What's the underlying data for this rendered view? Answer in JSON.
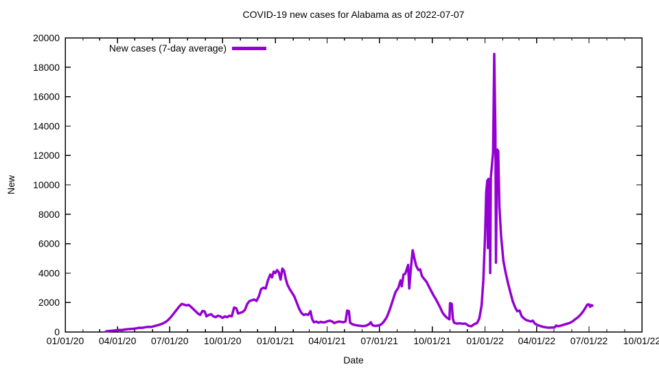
{
  "chart_data": {
    "type": "line",
    "title": "COVID-19 new cases for Alabama as of 2022-07-07",
    "xlabel": "Date",
    "ylabel": "New",
    "x_range": [
      "2020-01-01",
      "2022-10-01"
    ],
    "ylim": [
      0,
      20000
    ],
    "y_ticks": [
      0,
      2000,
      4000,
      6000,
      8000,
      10000,
      12000,
      14000,
      16000,
      18000,
      20000
    ],
    "x_minor_tick_interval": "monthly",
    "grid": false,
    "border": true,
    "background_color": "#ffffff",
    "axis_color": "#000000",
    "legend_position": "top-left",
    "x_major_ticks": [
      {
        "date": "2020-01-01",
        "label": "01/01/20"
      },
      {
        "date": "2020-04-01",
        "label": "04/01/20"
      },
      {
        "date": "2020-07-01",
        "label": "07/01/20"
      },
      {
        "date": "2020-10-01",
        "label": "10/01/20"
      },
      {
        "date": "2021-01-01",
        "label": "01/01/21"
      },
      {
        "date": "2021-04-01",
        "label": "04/01/21"
      },
      {
        "date": "2021-07-01",
        "label": "07/01/21"
      },
      {
        "date": "2021-10-01",
        "label": "10/01/21"
      },
      {
        "date": "2022-01-01",
        "label": "01/01/22"
      },
      {
        "date": "2022-04-01",
        "label": "04/01/22"
      },
      {
        "date": "2022-07-01",
        "label": "07/01/22"
      },
      {
        "date": "2022-10-01",
        "label": "10/01/22"
      }
    ],
    "series": [
      {
        "name": "New cases (7-day average)",
        "color": "#9400d3",
        "points": [
          [
            "2020-03-12",
            30
          ],
          [
            "2020-03-16",
            50
          ],
          [
            "2020-03-20",
            70
          ],
          [
            "2020-03-25",
            90
          ],
          [
            "2020-03-30",
            110
          ],
          [
            "2020-04-04",
            130
          ],
          [
            "2020-04-09",
            120
          ],
          [
            "2020-04-14",
            160
          ],
          [
            "2020-04-19",
            180
          ],
          [
            "2020-04-24",
            200
          ],
          [
            "2020-04-29",
            210
          ],
          [
            "2020-05-04",
            240
          ],
          [
            "2020-05-09",
            280
          ],
          [
            "2020-05-14",
            270
          ],
          [
            "2020-05-19",
            310
          ],
          [
            "2020-05-24",
            340
          ],
          [
            "2020-05-29",
            330
          ],
          [
            "2020-06-03",
            380
          ],
          [
            "2020-06-08",
            430
          ],
          [
            "2020-06-13",
            480
          ],
          [
            "2020-06-18",
            550
          ],
          [
            "2020-06-23",
            650
          ],
          [
            "2020-06-28",
            800
          ],
          [
            "2020-07-03",
            1000
          ],
          [
            "2020-07-08",
            1250
          ],
          [
            "2020-07-13",
            1500
          ],
          [
            "2020-07-18",
            1750
          ],
          [
            "2020-07-22",
            1900
          ],
          [
            "2020-07-26",
            1850
          ],
          [
            "2020-07-30",
            1800
          ],
          [
            "2020-08-03",
            1830
          ],
          [
            "2020-08-07",
            1700
          ],
          [
            "2020-08-11",
            1550
          ],
          [
            "2020-08-15",
            1400
          ],
          [
            "2020-08-19",
            1250
          ],
          [
            "2020-08-23",
            1150
          ],
          [
            "2020-08-27",
            1420
          ],
          [
            "2020-08-31",
            1380
          ],
          [
            "2020-09-03",
            1050
          ],
          [
            "2020-09-07",
            1150
          ],
          [
            "2020-09-11",
            1200
          ],
          [
            "2020-09-15",
            1050
          ],
          [
            "2020-09-19",
            1000
          ],
          [
            "2020-09-23",
            1100
          ],
          [
            "2020-09-27",
            1050
          ],
          [
            "2020-10-01",
            950
          ],
          [
            "2020-10-05",
            1050
          ],
          [
            "2020-10-09",
            1000
          ],
          [
            "2020-10-13",
            1100
          ],
          [
            "2020-10-17",
            1050
          ],
          [
            "2020-10-21",
            1650
          ],
          [
            "2020-10-25",
            1600
          ],
          [
            "2020-10-28",
            1250
          ],
          [
            "2020-11-01",
            1300
          ],
          [
            "2020-11-05",
            1350
          ],
          [
            "2020-11-09",
            1500
          ],
          [
            "2020-11-13",
            1900
          ],
          [
            "2020-11-17",
            2100
          ],
          [
            "2020-11-21",
            2150
          ],
          [
            "2020-11-25",
            2200
          ],
          [
            "2020-11-29",
            2100
          ],
          [
            "2020-12-03",
            2400
          ],
          [
            "2020-12-07",
            2900
          ],
          [
            "2020-12-11",
            3000
          ],
          [
            "2020-12-15",
            2950
          ],
          [
            "2020-12-19",
            3500
          ],
          [
            "2020-12-23",
            3900
          ],
          [
            "2020-12-26",
            3700
          ],
          [
            "2020-12-29",
            4100
          ],
          [
            "2021-01-01",
            4000
          ],
          [
            "2021-01-04",
            4200
          ],
          [
            "2021-01-07",
            4050
          ],
          [
            "2021-01-10",
            3550
          ],
          [
            "2021-01-13",
            4300
          ],
          [
            "2021-01-16",
            4150
          ],
          [
            "2021-01-19",
            3600
          ],
          [
            "2021-01-22",
            3200
          ],
          [
            "2021-01-26",
            2900
          ],
          [
            "2021-01-30",
            2650
          ],
          [
            "2021-02-03",
            2400
          ],
          [
            "2021-02-07",
            2000
          ],
          [
            "2021-02-11",
            1600
          ],
          [
            "2021-02-15",
            1300
          ],
          [
            "2021-02-19",
            1150
          ],
          [
            "2021-02-23",
            1200
          ],
          [
            "2021-02-27",
            1150
          ],
          [
            "2021-03-03",
            1400
          ],
          [
            "2021-03-06",
            850
          ],
          [
            "2021-03-09",
            650
          ],
          [
            "2021-03-13",
            700
          ],
          [
            "2021-03-17",
            620
          ],
          [
            "2021-03-21",
            680
          ],
          [
            "2021-03-25",
            640
          ],
          [
            "2021-03-29",
            660
          ],
          [
            "2021-04-02",
            730
          ],
          [
            "2021-04-06",
            760
          ],
          [
            "2021-04-10",
            700
          ],
          [
            "2021-04-13",
            600
          ],
          [
            "2021-04-17",
            650
          ],
          [
            "2021-04-21",
            700
          ],
          [
            "2021-04-25",
            680
          ],
          [
            "2021-04-29",
            650
          ],
          [
            "2021-05-03",
            700
          ],
          [
            "2021-05-06",
            1450
          ],
          [
            "2021-05-09",
            1400
          ],
          [
            "2021-05-11",
            620
          ],
          [
            "2021-05-15",
            520
          ],
          [
            "2021-05-19",
            470
          ],
          [
            "2021-05-24",
            430
          ],
          [
            "2021-05-29",
            410
          ],
          [
            "2021-06-03",
            390
          ],
          [
            "2021-06-08",
            420
          ],
          [
            "2021-06-13",
            520
          ],
          [
            "2021-06-16",
            650
          ],
          [
            "2021-06-19",
            450
          ],
          [
            "2021-06-24",
            400
          ],
          [
            "2021-06-29",
            430
          ],
          [
            "2021-07-04",
            500
          ],
          [
            "2021-07-09",
            700
          ],
          [
            "2021-07-14",
            1000
          ],
          [
            "2021-07-19",
            1500
          ],
          [
            "2021-07-24",
            2100
          ],
          [
            "2021-07-29",
            2700
          ],
          [
            "2021-08-03",
            3000
          ],
          [
            "2021-08-07",
            3500
          ],
          [
            "2021-08-09",
            3100
          ],
          [
            "2021-08-12",
            3900
          ],
          [
            "2021-08-15",
            3950
          ],
          [
            "2021-08-18",
            4300
          ],
          [
            "2021-08-20",
            4550
          ],
          [
            "2021-08-22",
            2950
          ],
          [
            "2021-08-25",
            4400
          ],
          [
            "2021-08-28",
            5550
          ],
          [
            "2021-08-31",
            5000
          ],
          [
            "2021-09-03",
            4500
          ],
          [
            "2021-09-07",
            4200
          ],
          [
            "2021-09-10",
            4250
          ],
          [
            "2021-09-13",
            3800
          ],
          [
            "2021-09-17",
            3600
          ],
          [
            "2021-09-21",
            3400
          ],
          [
            "2021-09-25",
            3100
          ],
          [
            "2021-09-29",
            2800
          ],
          [
            "2021-10-03",
            2500
          ],
          [
            "2021-10-07",
            2250
          ],
          [
            "2021-10-11",
            1950
          ],
          [
            "2021-10-15",
            1650
          ],
          [
            "2021-10-19",
            1300
          ],
          [
            "2021-10-23",
            1100
          ],
          [
            "2021-10-27",
            950
          ],
          [
            "2021-10-31",
            850
          ],
          [
            "2021-11-01",
            1950
          ],
          [
            "2021-11-04",
            1900
          ],
          [
            "2021-11-06",
            900
          ],
          [
            "2021-11-08",
            620
          ],
          [
            "2021-11-13",
            560
          ],
          [
            "2021-11-18",
            580
          ],
          [
            "2021-11-23",
            550
          ],
          [
            "2021-11-28",
            560
          ],
          [
            "2021-12-03",
            420
          ],
          [
            "2021-12-08",
            380
          ],
          [
            "2021-12-13",
            520
          ],
          [
            "2021-12-18",
            600
          ],
          [
            "2021-12-22",
            900
          ],
          [
            "2021-12-26",
            1800
          ],
          [
            "2021-12-29",
            3500
          ],
          [
            "2022-01-01",
            6500
          ],
          [
            "2022-01-03",
            9500
          ],
          [
            "2022-01-05",
            10300
          ],
          [
            "2022-01-06",
            5700
          ],
          [
            "2022-01-07",
            10400
          ],
          [
            "2022-01-09",
            10300
          ],
          [
            "2022-01-10",
            4000
          ],
          [
            "2022-01-11",
            10500
          ],
          [
            "2022-01-13",
            11300
          ],
          [
            "2022-01-15",
            12200
          ],
          [
            "2022-01-17",
            18900
          ],
          [
            "2022-01-19",
            13500
          ],
          [
            "2022-01-20",
            4700
          ],
          [
            "2022-01-22",
            12400
          ],
          [
            "2022-01-24",
            12300
          ],
          [
            "2022-01-26",
            8500
          ],
          [
            "2022-01-29",
            6500
          ],
          [
            "2022-02-02",
            4800
          ],
          [
            "2022-02-06",
            4000
          ],
          [
            "2022-02-10",
            3300
          ],
          [
            "2022-02-14",
            2700
          ],
          [
            "2022-02-18",
            2100
          ],
          [
            "2022-02-22",
            1700
          ],
          [
            "2022-02-26",
            1400
          ],
          [
            "2022-03-02",
            1450
          ],
          [
            "2022-03-06",
            1050
          ],
          [
            "2022-03-10",
            900
          ],
          [
            "2022-03-14",
            800
          ],
          [
            "2022-03-18",
            750
          ],
          [
            "2022-03-22",
            700
          ],
          [
            "2022-03-25",
            760
          ],
          [
            "2022-03-29",
            550
          ],
          [
            "2022-04-03",
            450
          ],
          [
            "2022-04-08",
            390
          ],
          [
            "2022-04-13",
            330
          ],
          [
            "2022-04-18",
            300
          ],
          [
            "2022-04-23",
            280
          ],
          [
            "2022-04-28",
            300
          ],
          [
            "2022-05-02",
            290
          ],
          [
            "2022-05-05",
            430
          ],
          [
            "2022-05-08",
            380
          ],
          [
            "2022-05-13",
            420
          ],
          [
            "2022-05-18",
            480
          ],
          [
            "2022-05-23",
            540
          ],
          [
            "2022-05-28",
            600
          ],
          [
            "2022-06-02",
            700
          ],
          [
            "2022-06-07",
            850
          ],
          [
            "2022-06-12",
            1000
          ],
          [
            "2022-06-17",
            1200
          ],
          [
            "2022-06-21",
            1400
          ],
          [
            "2022-06-25",
            1650
          ],
          [
            "2022-06-28",
            1850
          ],
          [
            "2022-07-01",
            1870
          ],
          [
            "2022-07-03",
            1700
          ],
          [
            "2022-07-05",
            1820
          ],
          [
            "2022-07-07",
            1780
          ]
        ]
      }
    ]
  }
}
